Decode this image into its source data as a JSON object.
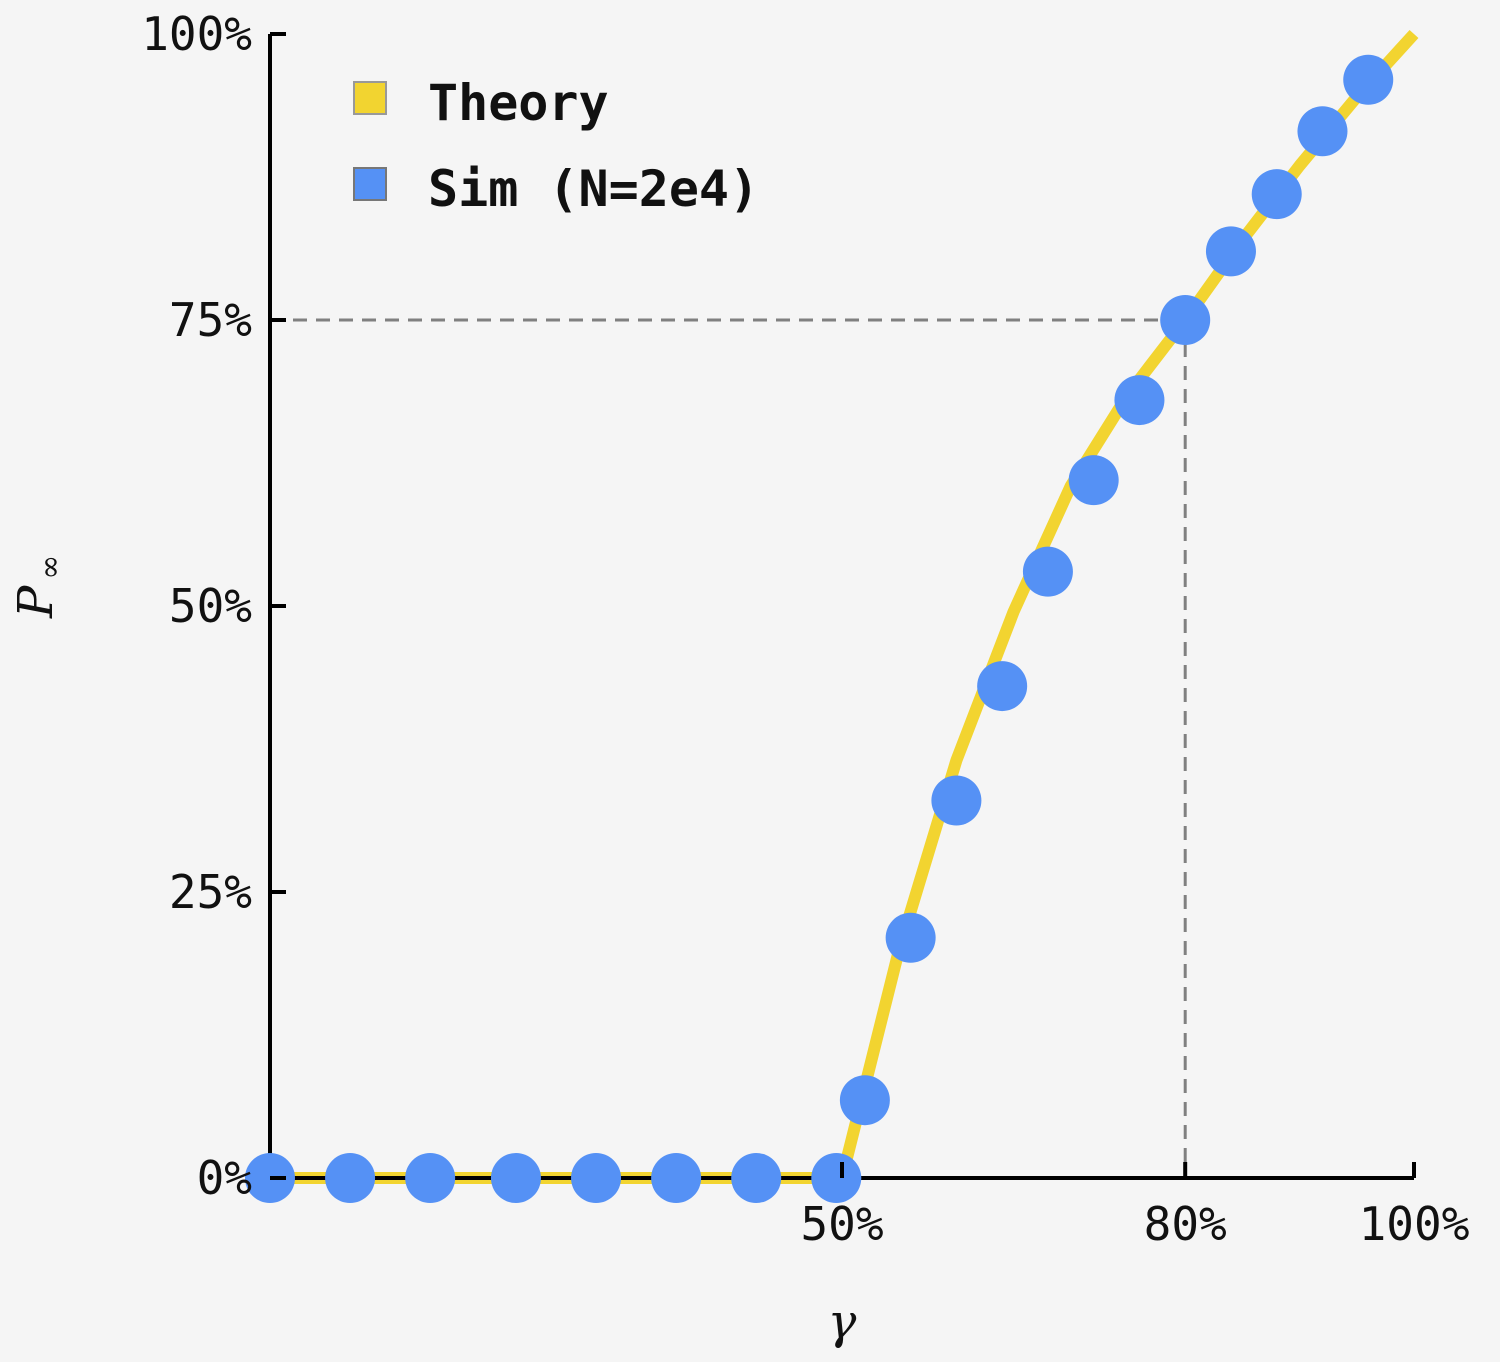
{
  "chart_data": {
    "type": "line",
    "xlabel": "γ",
    "ylabel": "P",
    "ylabel_subscript": "∞",
    "xlim": [
      0,
      100
    ],
    "ylim": [
      0,
      100
    ],
    "x_ticks": [
      50,
      80,
      100
    ],
    "x_tick_labels": [
      "50%",
      "80%",
      "100%"
    ],
    "y_ticks": [
      0,
      25,
      50,
      75,
      100
    ],
    "y_tick_labels": [
      "0%",
      "25%",
      "50%",
      "75%",
      "100%"
    ],
    "legend_position": "top-left",
    "reference_point": {
      "x": 80,
      "y": 75
    },
    "series": [
      {
        "name": "Theory",
        "kind": "line",
        "color": "#f2d430",
        "x": [
          0,
          5,
          10,
          15,
          20,
          25,
          30,
          35,
          40,
          45,
          50,
          55,
          60,
          65,
          70,
          75,
          80,
          85,
          90,
          95,
          100
        ],
        "y": [
          0,
          0,
          0,
          0,
          0,
          0,
          0,
          0,
          0,
          0,
          0,
          20,
          36.5,
          49.5,
          60.5,
          68.5,
          75,
          82,
          88.5,
          94.5,
          100
        ]
      },
      {
        "name": "Sim (N=2e4)",
        "kind": "scatter",
        "color": "#5591f5",
        "x": [
          0,
          7,
          14,
          21.5,
          28.5,
          35.5,
          42.5,
          49.5,
          52,
          56,
          60,
          64,
          68,
          72,
          76,
          80,
          84,
          88,
          92,
          96
        ],
        "y": [
          0,
          0,
          0,
          0,
          0,
          0,
          0,
          0,
          6.8,
          21,
          33,
          43,
          53,
          61,
          68,
          75,
          81,
          86,
          91.5,
          96
        ]
      }
    ]
  }
}
